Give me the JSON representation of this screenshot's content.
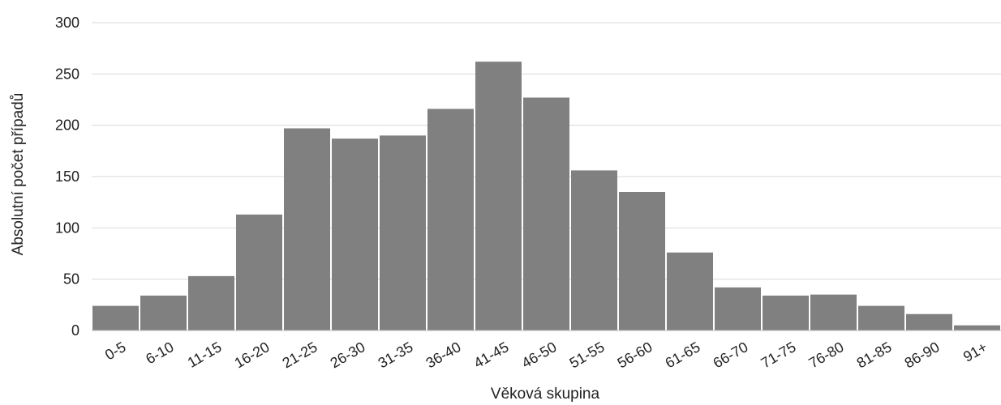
{
  "chart_data": {
    "type": "bar",
    "title": "",
    "xlabel": "Věková skupina",
    "ylabel": "Absolutní počet případů",
    "categories": [
      "0-5",
      "6-10",
      "11-15",
      "16-20",
      "21-25",
      "26-30",
      "31-35",
      "36-40",
      "41-45",
      "46-50",
      "51-55",
      "56-60",
      "61-65",
      "66-70",
      "71-75",
      "76-80",
      "81-85",
      "86-90",
      "91+"
    ],
    "values": [
      24,
      34,
      53,
      113,
      197,
      187,
      190,
      216,
      262,
      227,
      156,
      135,
      76,
      42,
      34,
      35,
      24,
      16,
      5
    ],
    "ylim": [
      0,
      300
    ],
    "yticks": [
      0,
      50,
      100,
      150,
      200,
      250,
      300
    ],
    "grid": true,
    "colors": {
      "bar": "#808080",
      "grid": "#d9d9d9",
      "text": "#222222"
    }
  }
}
